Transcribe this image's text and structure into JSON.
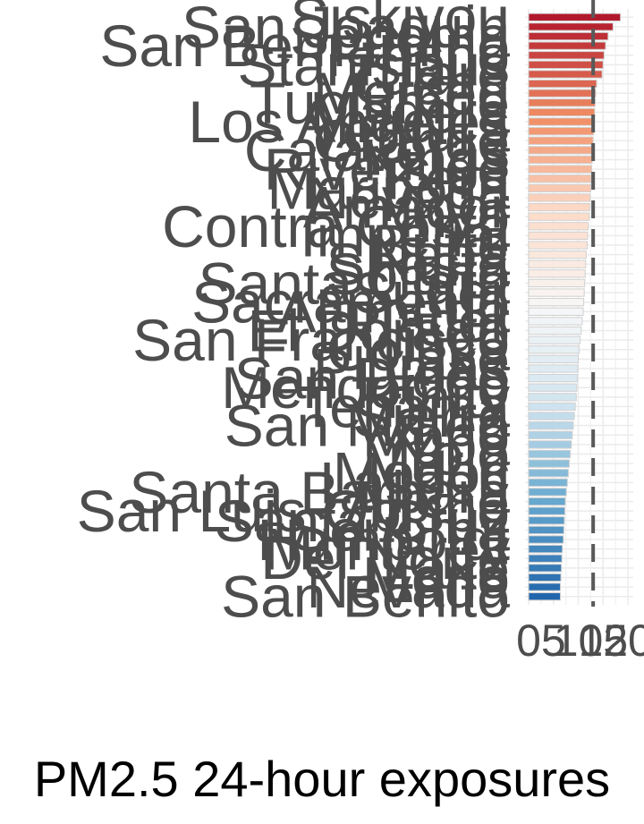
{
  "chart_data": {
    "type": "bar",
    "orientation": "horizontal",
    "xlabel": "PM2.5 24-hour exposures",
    "x_ticks": [
      "0",
      "5",
      "10",
      "15",
      "20"
    ],
    "xlim": [
      0,
      20
    ],
    "reference_line": 13,
    "categories": [
      "Siskiyou",
      "San Joaquin",
      "Sonoma",
      "San Bernardino",
      "Fresno",
      "Stanislaus",
      "Tulare",
      "Glenn",
      "Merced",
      "Tuolumne",
      "Madera",
      "Los Angeles",
      "Ventura",
      "Orange",
      "Calaveras",
      "Kings",
      "Riverside",
      "Kern",
      "Mariposa",
      "Nevada",
      "Amador",
      "Inyo",
      "Contra Costa",
      "Imperial",
      "Butte",
      "Napa",
      "Shasta",
      "Solano",
      "Santa Clara",
      "Sutter",
      "Sacramento",
      "Alameda",
      "Placer",
      "El Dorado",
      "San Francisco",
      "Colusa",
      "Lake",
      "Plumas",
      "San Diego",
      "Mendocino",
      "Trinity",
      "Tehama",
      "Sierra",
      "San Mateo",
      "Mono",
      "Yuba",
      "Yolo",
      "Marin",
      "Modoc",
      "Lassen",
      "Santa Barbara",
      "Alpine",
      "San Luis Obispo",
      "Santa Cruz",
      "Sonoma",
      "Humboldt",
      "Monterey",
      "Del Norte",
      "Lake",
      "Mono",
      "Nevada",
      "San Benito"
    ],
    "values": [
      18.5,
      17.0,
      16.0,
      15.5,
      15.2,
      15.0,
      14.8,
      13.7,
      13.5,
      13.4,
      13.3,
      13.2,
      13.1,
      13.0,
      12.9,
      12.8,
      12.7,
      12.6,
      12.5,
      12.4,
      12.3,
      12.2,
      12.0,
      11.9,
      11.8,
      11.6,
      11.5,
      11.4,
      11.3,
      11.2,
      11.1,
      11.0,
      10.8,
      10.6,
      10.4,
      10.2,
      10.0,
      9.9,
      9.8,
      9.7,
      9.6,
      9.4,
      9.2,
      9.0,
      8.8,
      8.6,
      8.4,
      8.2,
      8.0,
      7.8,
      7.6,
      7.4,
      7.3,
      7.2,
      7.1,
      7.0,
      6.8,
      6.7,
      6.6,
      6.5,
      6.4,
      6.4
    ],
    "color_scale": [
      "#b2182b",
      "#ef8a62",
      "#fddbc7",
      "#f7f7f7",
      "#d1e5f0",
      "#67a9cf",
      "#2166ac"
    ],
    "grid": true,
    "legend": "none"
  }
}
